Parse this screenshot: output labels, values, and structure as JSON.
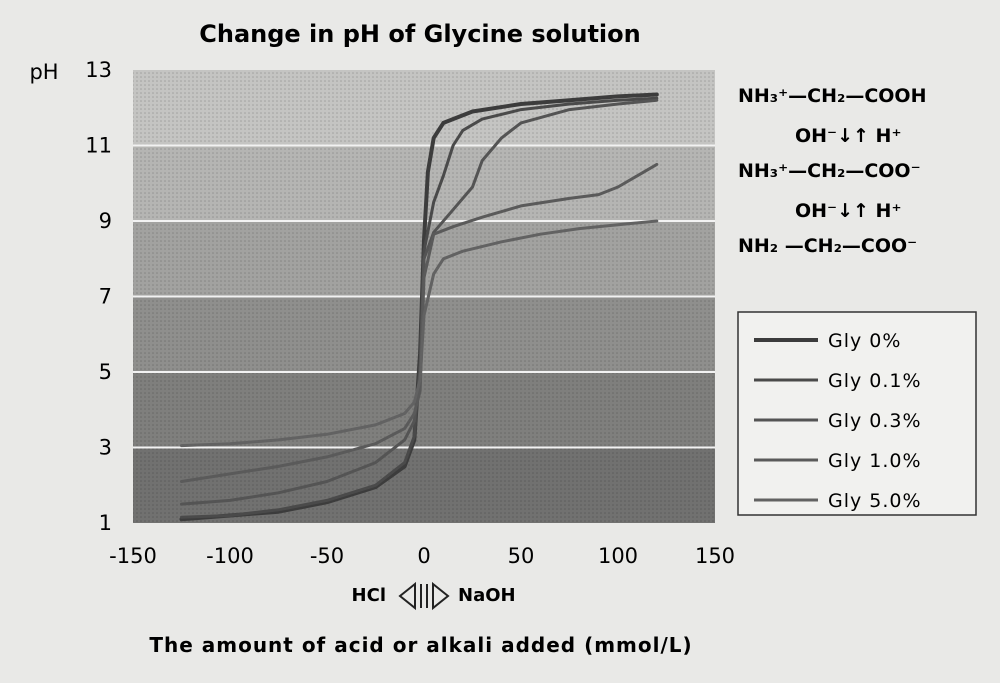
{
  "chart_data": {
    "type": "line",
    "title": "Change in pH of Glycine solution",
    "ylabel": "pH",
    "xlabel": "The amount of acid or alkali added (mmol/L)",
    "x_direction_labels": {
      "left": "HCl",
      "right": "NaOH"
    },
    "xlim": [
      -150,
      150
    ],
    "ylim": [
      1,
      13
    ],
    "x_ticks": [
      "-150",
      "-100",
      "-50",
      "0",
      "50",
      "100",
      "150"
    ],
    "y_ticks": [
      "13",
      "11",
      "9",
      "7",
      "5",
      "3",
      "1"
    ],
    "grid": true,
    "legend_position": "right",
    "series": [
      {
        "name": "Gly 0%",
        "color": "#3c3c3c",
        "width": 4,
        "points": [
          [
            -125,
            1.1
          ],
          [
            -100,
            1.2
          ],
          [
            -75,
            1.3
          ],
          [
            -50,
            1.55
          ],
          [
            -25,
            1.95
          ],
          [
            -10,
            2.5
          ],
          [
            -5,
            3.2
          ],
          [
            -2,
            5.5
          ],
          [
            0,
            8.5
          ],
          [
            2,
            10.3
          ],
          [
            5,
            11.2
          ],
          [
            10,
            11.6
          ],
          [
            25,
            11.9
          ],
          [
            50,
            12.1
          ],
          [
            75,
            12.2
          ],
          [
            100,
            12.3
          ],
          [
            120,
            12.35
          ]
        ]
      },
      {
        "name": "Gly 0.1%",
        "color": "#4a4a4a",
        "width": 3,
        "points": [
          [
            -125,
            1.15
          ],
          [
            -100,
            1.2
          ],
          [
            -75,
            1.35
          ],
          [
            -50,
            1.6
          ],
          [
            -25,
            2.0
          ],
          [
            -10,
            2.6
          ],
          [
            -5,
            3.3
          ],
          [
            -2,
            5.2
          ],
          [
            0,
            8.2
          ],
          [
            5,
            9.5
          ],
          [
            10,
            10.2
          ],
          [
            15,
            11.0
          ],
          [
            20,
            11.4
          ],
          [
            30,
            11.7
          ],
          [
            50,
            11.95
          ],
          [
            75,
            12.1
          ],
          [
            100,
            12.2
          ],
          [
            120,
            12.25
          ]
        ]
      },
      {
        "name": "Gly 0.3%",
        "color": "#545454",
        "width": 3,
        "points": [
          [
            -125,
            1.5
          ],
          [
            -100,
            1.6
          ],
          [
            -75,
            1.8
          ],
          [
            -50,
            2.1
          ],
          [
            -25,
            2.6
          ],
          [
            -10,
            3.2
          ],
          [
            -5,
            3.7
          ],
          [
            -2,
            5.0
          ],
          [
            0,
            8.0
          ],
          [
            5,
            8.7
          ],
          [
            15,
            9.3
          ],
          [
            25,
            9.9
          ],
          [
            30,
            10.6
          ],
          [
            40,
            11.2
          ],
          [
            50,
            11.6
          ],
          [
            75,
            11.95
          ],
          [
            100,
            12.1
          ],
          [
            120,
            12.2
          ]
        ]
      },
      {
        "name": "Gly 1.0%",
        "color": "#5a5a5a",
        "width": 3,
        "points": [
          [
            -125,
            2.1
          ],
          [
            -100,
            2.3
          ],
          [
            -75,
            2.5
          ],
          [
            -50,
            2.75
          ],
          [
            -25,
            3.1
          ],
          [
            -10,
            3.5
          ],
          [
            -5,
            3.9
          ],
          [
            -2,
            4.5
          ],
          [
            0,
            7.5
          ],
          [
            5,
            8.65
          ],
          [
            15,
            8.85
          ],
          [
            30,
            9.1
          ],
          [
            50,
            9.4
          ],
          [
            75,
            9.6
          ],
          [
            90,
            9.7
          ],
          [
            100,
            9.9
          ],
          [
            120,
            10.5
          ]
        ]
      },
      {
        "name": "Gly 5.0%",
        "color": "#626262",
        "width": 3,
        "points": [
          [
            -125,
            3.05
          ],
          [
            -100,
            3.1
          ],
          [
            -75,
            3.2
          ],
          [
            -50,
            3.35
          ],
          [
            -25,
            3.6
          ],
          [
            -10,
            3.9
          ],
          [
            -5,
            4.2
          ],
          [
            -2,
            4.8
          ],
          [
            0,
            6.5
          ],
          [
            5,
            7.6
          ],
          [
            10,
            8.0
          ],
          [
            20,
            8.2
          ],
          [
            40,
            8.45
          ],
          [
            60,
            8.65
          ],
          [
            80,
            8.8
          ],
          [
            100,
            8.9
          ],
          [
            120,
            9.0
          ]
        ]
      }
    ],
    "annotations": {
      "row1": "NH₃⁺—CH₂—COOH",
      "arrow1": "OH⁻↓↑ H⁺",
      "row2": "NH₃⁺—CH₂—COO⁻",
      "arrow2": "OH⁻↓↑ H⁺",
      "row3": "NH₂ —CH₂—COO⁻"
    }
  }
}
